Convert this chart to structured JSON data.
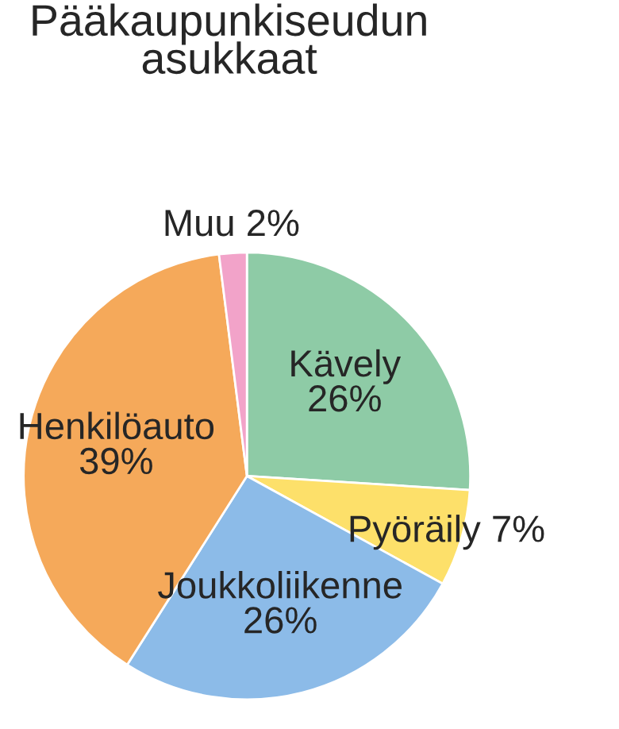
{
  "chart_data": {
    "type": "pie",
    "title": "Pääkaupunkiseudun\nasukkaat",
    "categories": [
      "Kävely",
      "Pyöräily",
      "Joukkoliikenne",
      "Henkilöauto",
      "Muu"
    ],
    "values": [
      26,
      7,
      26,
      39,
      2
    ],
    "value_labels": [
      "26%",
      "7%",
      "26%",
      "39%",
      "2%"
    ],
    "colors": [
      "#8ecba6",
      "#fde06a",
      "#8cbbe8",
      "#f5a95a",
      "#f2a3c9"
    ]
  }
}
